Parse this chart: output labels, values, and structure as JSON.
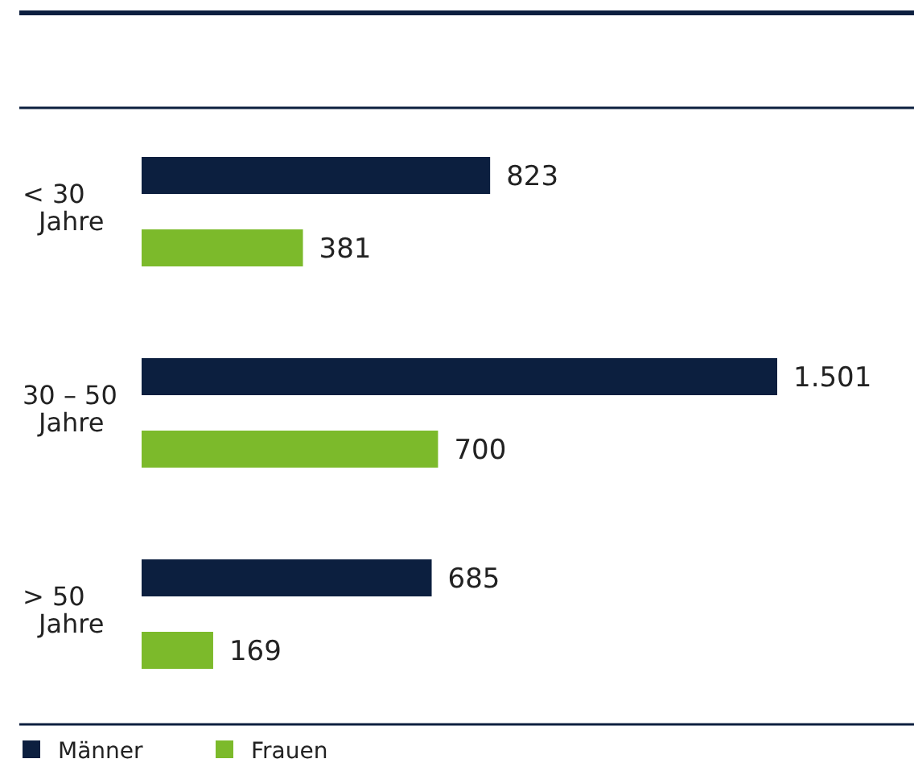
{
  "chart_data": {
    "type": "bar",
    "orientation": "horizontal",
    "categories": [
      "< 30 Jahre",
      "30 – 50 Jahre",
      "> 50 Jahre"
    ],
    "series": [
      {
        "name": "Männer",
        "color": "#0c1f3f",
        "values": [
          823,
          1501,
          685
        ],
        "value_labels": [
          "823",
          "1.501",
          "685"
        ]
      },
      {
        "name": "Frauen",
        "color": "#7cba2b",
        "values": [
          381,
          700,
          169
        ],
        "value_labels": [
          "381",
          "700",
          "169"
        ]
      }
    ],
    "legend": "bottom left"
  }
}
